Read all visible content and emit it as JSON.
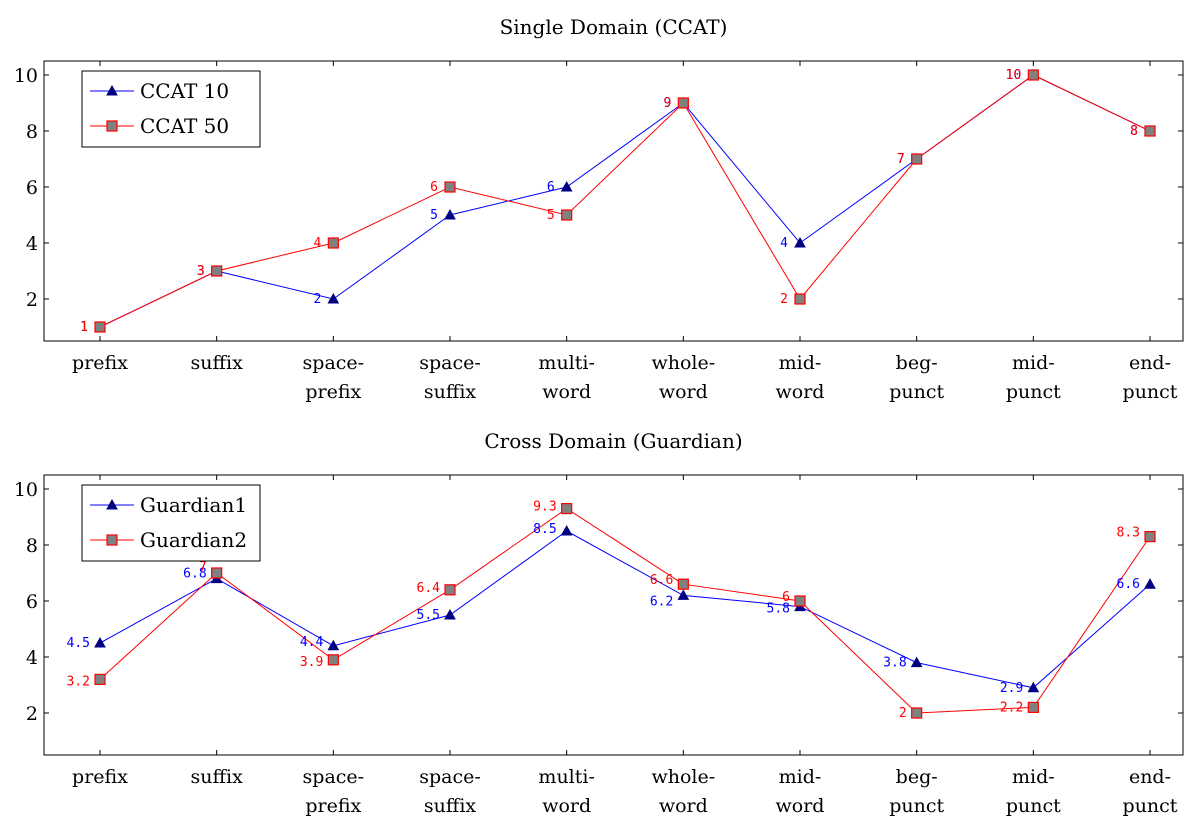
{
  "chart_data": [
    {
      "type": "line",
      "title": "Single Domain (CCAT)",
      "xlabel": "",
      "ylabel": "",
      "categories": [
        [
          "prefix"
        ],
        [
          "suffix"
        ],
        [
          "space-",
          "prefix"
        ],
        [
          "space-",
          "suffix"
        ],
        [
          "multi-",
          "word"
        ],
        [
          "whole-",
          "word"
        ],
        [
          "mid-",
          "word"
        ],
        [
          "beg-",
          "punct"
        ],
        [
          "mid-",
          "punct"
        ],
        [
          "end-",
          "punct"
        ]
      ],
      "ylim": [
        0.5,
        10.5
      ],
      "yticks": [
        2,
        4,
        6,
        8,
        10
      ],
      "grid": false,
      "legend_position": "top-left",
      "series": [
        {
          "name": "CCAT_10",
          "legend_label": "CCAT 10",
          "color": "#0000ff",
          "marker": "triangle",
          "marker_color": "#000080",
          "values": [
            1,
            3,
            2,
            5,
            6,
            9,
            4,
            7,
            10,
            8
          ]
        },
        {
          "name": "CCAT_50",
          "legend_label": "CCAT 50",
          "color": "#ff0000",
          "marker": "square",
          "marker_color": "#808080",
          "values": [
            1,
            3,
            4,
            6,
            5,
            9,
            2,
            7,
            10,
            8
          ]
        }
      ],
      "point_labels": [
        [
          "1",
          "3",
          "2",
          "5",
          "6",
          "9",
          "4",
          "7",
          "10",
          "8"
        ],
        [
          "1",
          "3",
          "4",
          "6",
          "5",
          "9",
          "2",
          "7",
          "10",
          "8"
        ]
      ]
    },
    {
      "type": "line",
      "title": "Cross Domain (Guardian)",
      "xlabel": "",
      "ylabel": "",
      "categories": [
        [
          "prefix"
        ],
        [
          "suffix"
        ],
        [
          "space-",
          "prefix"
        ],
        [
          "space-",
          "suffix"
        ],
        [
          "multi-",
          "word"
        ],
        [
          "whole-",
          "word"
        ],
        [
          "mid-",
          "word"
        ],
        [
          "beg-",
          "punct"
        ],
        [
          "mid-",
          "punct"
        ],
        [
          "end-",
          "punct"
        ]
      ],
      "ylim": [
        0.5,
        10.5
      ],
      "yticks": [
        2,
        4,
        6,
        8,
        10
      ],
      "grid": false,
      "legend_position": "top-left",
      "series": [
        {
          "name": "Guardian1",
          "legend_label": "Guardian1",
          "color": "#0000ff",
          "marker": "triangle",
          "marker_color": "#000080",
          "values": [
            4.5,
            6.8,
            4.4,
            5.5,
            8.5,
            6.2,
            5.8,
            3.8,
            2.9,
            6.6
          ]
        },
        {
          "name": "Guardian2",
          "legend_label": "Guardian2",
          "color": "#ff0000",
          "marker": "square",
          "marker_color": "#808080",
          "values": [
            3.2,
            7,
            3.9,
            6.4,
            9.3,
            6.6,
            6,
            2,
            2.2,
            8.3
          ]
        }
      ],
      "point_labels": [
        [
          "4.5",
          "6.8",
          "4.4",
          "5.5",
          "8.5",
          "6.2",
          "5.8",
          "3.8",
          "2.9",
          "6.6"
        ],
        [
          "3.2",
          "7",
          "3.9",
          "6.4",
          "9.3",
          "6.6",
          "6",
          "2",
          "2.2",
          "8.3"
        ]
      ]
    }
  ]
}
